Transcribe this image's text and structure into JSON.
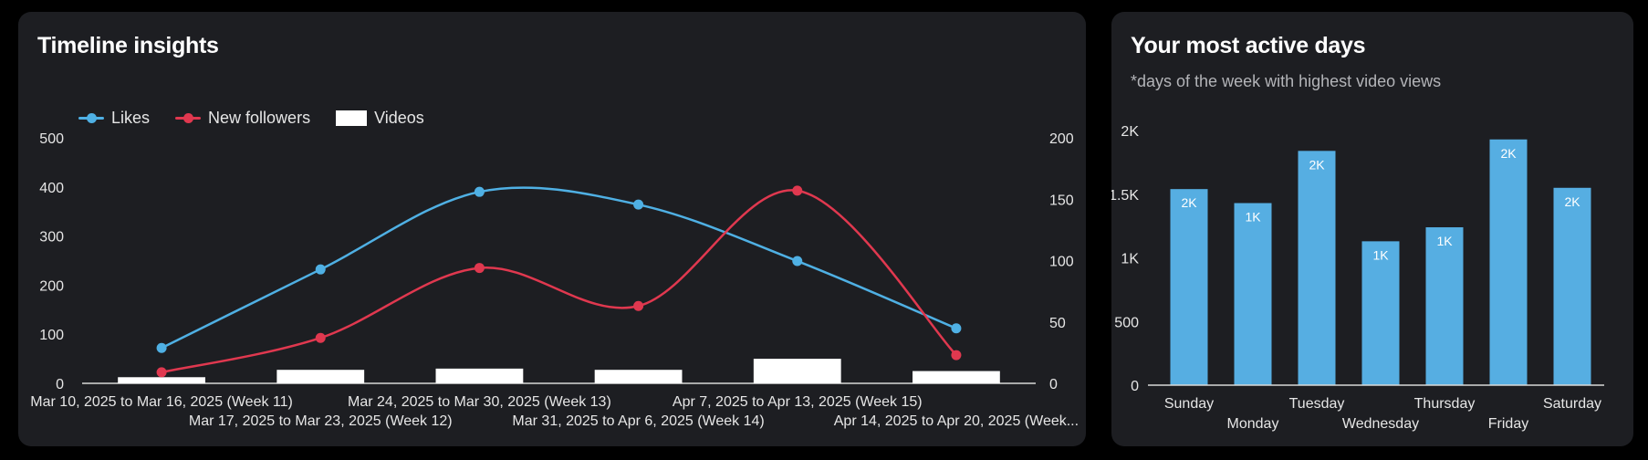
{
  "timeline": {
    "title": "Timeline insights",
    "legend": {
      "likes": "Likes",
      "followers": "New followers",
      "videos": "Videos"
    }
  },
  "active_days": {
    "title": "Your most active days",
    "subtitle": "*days of the week with highest video views"
  },
  "colors": {
    "likes": "#4fb0e4",
    "followers": "#e0384f",
    "videos": "#ffffff",
    "bars": "#56aee2"
  },
  "chart_data": [
    {
      "type": "line",
      "title": "Timeline insights",
      "x": [
        "Mar 10, 2025 to Mar 16, 2025 (Week 11)",
        "Mar 17, 2025 to Mar 23, 2025 (Week 12)",
        "Mar 24, 2025 to Mar 30, 2025 (Week 13)",
        "Mar 31, 2025 to Apr 6, 2025 (Week 14)",
        "Apr 7, 2025 to Apr 13, 2025 (Week 15)",
        "Apr 14, 2025 to Apr 20, 2025 (Week..."
      ],
      "series": [
        {
          "name": "Likes",
          "axis": "left",
          "type": "line",
          "values": [
            72,
            232,
            390,
            364,
            249,
            112
          ]
        },
        {
          "name": "New followers",
          "axis": "right",
          "type": "line",
          "values": [
            9,
            37,
            94,
            63,
            157,
            23
          ]
        },
        {
          "name": "Videos",
          "axis": "right",
          "type": "bar",
          "values": [
            5,
            11,
            12,
            11,
            20,
            10
          ]
        }
      ],
      "yleft": {
        "ticks": [
          "0",
          "100",
          "200",
          "300",
          "400",
          "500"
        ],
        "lim": [
          0,
          500
        ]
      },
      "yright": {
        "ticks": [
          "0",
          "50",
          "100",
          "150",
          "200"
        ],
        "lim": [
          0,
          200
        ]
      },
      "legend": "top-left"
    },
    {
      "type": "bar",
      "title": "Your most active days",
      "categories": [
        "Sunday",
        "Monday",
        "Tuesday",
        "Wednesday",
        "Thursday",
        "Friday",
        "Saturday"
      ],
      "values": [
        1540,
        1430,
        1840,
        1130,
        1240,
        1930,
        1550
      ],
      "data_labels": [
        "2K",
        "1K",
        "2K",
        "1K",
        "1K",
        "2K",
        "2K"
      ],
      "ylim": [
        0,
        2000
      ],
      "yticks": [
        "0",
        "500",
        "1K",
        "1.5K",
        "2K"
      ]
    }
  ]
}
